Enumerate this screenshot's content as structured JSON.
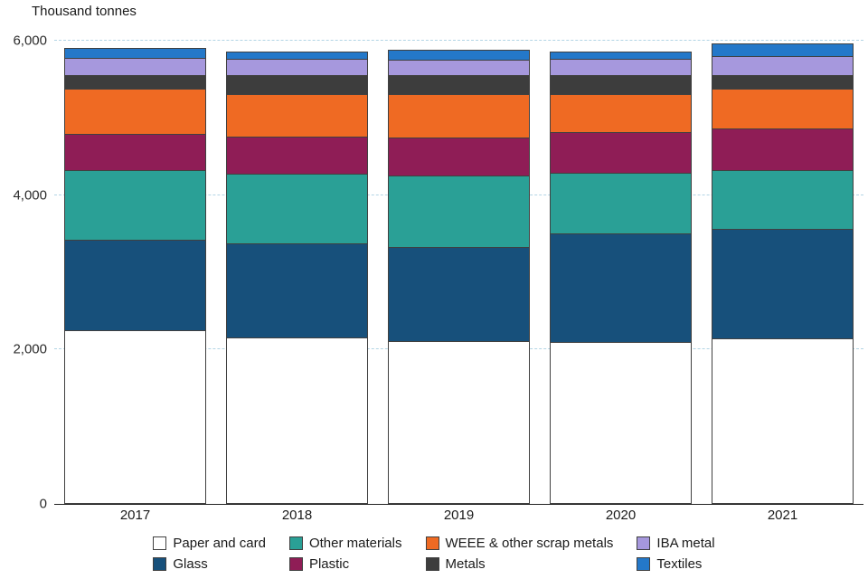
{
  "title": "Thousand tonnes",
  "chart_data": {
    "type": "bar",
    "stacked": true,
    "title": "Thousand tonnes",
    "xlabel": "",
    "ylabel": "Thousand tonnes",
    "categories": [
      "2017",
      "2018",
      "2019",
      "2020",
      "2021"
    ],
    "series": [
      {
        "name": "Paper and card",
        "color": "#ffffff",
        "values": [
          2250,
          2160,
          2110,
          2100,
          2150
        ]
      },
      {
        "name": "Glass",
        "color": "#17507b",
        "values": [
          1170,
          1220,
          1220,
          1410,
          1410
        ]
      },
      {
        "name": "Other materials",
        "color": "#2aa096",
        "values": [
          900,
          900,
          920,
          780,
          770
        ]
      },
      {
        "name": "Plastic",
        "color": "#8f1d56",
        "values": [
          470,
          480,
          500,
          530,
          530
        ]
      },
      {
        "name": "WEEE & other scrap metals",
        "color": "#ef6a23",
        "values": [
          590,
          550,
          560,
          490,
          520
        ]
      },
      {
        "name": "Metals",
        "color": "#3d3d3d",
        "values": [
          170,
          250,
          240,
          250,
          180
        ]
      },
      {
        "name": "IBA metal",
        "color": "#a698dd",
        "values": [
          230,
          210,
          210,
          210,
          240
        ]
      },
      {
        "name": "Textiles",
        "color": "#2478c9",
        "values": [
          130,
          90,
          120,
          90,
          160
        ]
      }
    ],
    "ylim": [
      0,
      6000
    ],
    "yticks": [
      0,
      2000,
      4000,
      6000
    ],
    "ytick_labels": [
      "0",
      "2,000",
      "4,000",
      "6,000"
    ],
    "grid": "horizontal-dashed",
    "legend_position": "bottom",
    "legend_rows": 2,
    "styles": {
      "grid_color": "#b3d5e5",
      "axis_color": "#222222",
      "segment_border_color": "#404040",
      "background": "#ffffff"
    }
  }
}
